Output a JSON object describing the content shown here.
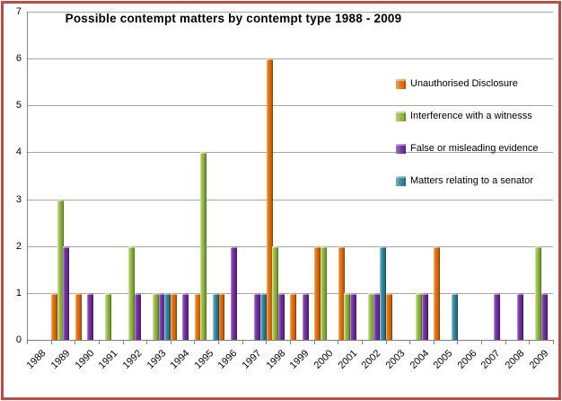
{
  "frame_color": "#BE4B48",
  "chart_data": {
    "type": "bar",
    "title": "Possible contempt matters by contempt type 1988 - 2009",
    "categories": [
      "1988",
      "1989",
      "1990",
      "1991",
      "1992",
      "1993",
      "1994",
      "1995",
      "1996",
      "1997",
      "1998",
      "1999",
      "2000",
      "2001",
      "2002",
      "2003",
      "2004",
      "2005",
      "2006",
      "2007",
      "2008",
      "2009"
    ],
    "series": [
      {
        "name": "Unauthorised Disclosure",
        "color": "#E36C0A",
        "values": [
          0,
          1,
          1,
          0,
          0,
          0,
          1,
          1,
          1,
          0,
          6,
          1,
          2,
          2,
          0,
          1,
          0,
          2,
          0,
          0,
          0,
          0
        ]
      },
      {
        "name": "Interference with a witnesss",
        "color": "#8DB63C",
        "values": [
          0,
          3,
          0,
          1,
          2,
          1,
          0,
          4,
          0,
          0,
          2,
          0,
          2,
          1,
          1,
          0,
          1,
          0,
          0,
          0,
          0,
          2
        ]
      },
      {
        "name": "False or misleading evidence",
        "color": "#7030A0",
        "values": [
          0,
          2,
          1,
          0,
          1,
          1,
          1,
          0,
          2,
          1,
          1,
          1,
          0,
          1,
          1,
          0,
          1,
          0,
          0,
          1,
          1,
          1
        ]
      },
      {
        "name": "Matters relating to a senator",
        "color": "#31859C",
        "values": [
          0,
          0,
          0,
          0,
          0,
          1,
          0,
          1,
          0,
          1,
          0,
          0,
          0,
          0,
          2,
          0,
          0,
          1,
          0,
          0,
          0,
          0
        ]
      }
    ],
    "xlabel": "",
    "ylabel": "",
    "ylim": [
      0,
      7
    ],
    "yticks": [
      0,
      1,
      2,
      3,
      4,
      5,
      6,
      7
    ],
    "grid": true,
    "legend_position": "overlay-right",
    "legend_transparent": true
  }
}
